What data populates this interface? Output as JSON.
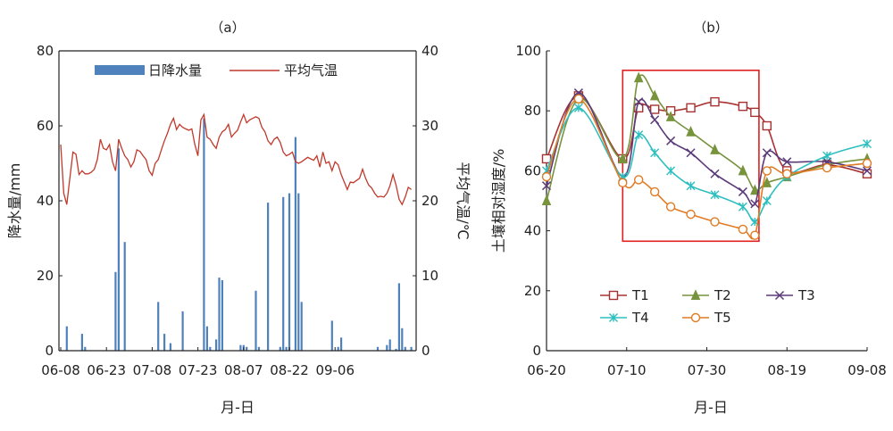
{
  "chart_data": [
    {
      "panel": "(a)",
      "type": "bar+line",
      "title": "（a）",
      "xlabel": "月-日",
      "ylabel_left": "降水量/mm",
      "ylabel_right": "平均气温/℃",
      "x_ticks": [
        "06-08",
        "06-23",
        "07-08",
        "07-23",
        "08-07",
        "08-22",
        "09-06"
      ],
      "ylim_left": [
        0,
        80
      ],
      "yticks_left": [
        "0",
        "20",
        "40",
        "60",
        "80"
      ],
      "ylim_right": [
        0,
        40
      ],
      "yticks_right": [
        "0",
        "10",
        "20",
        "30",
        "40"
      ],
      "legend": {
        "placement": "top-center",
        "entries": [
          "日降水量",
          "平均气温"
        ]
      },
      "colors": {
        "precip": "#4f81bd",
        "temp": "#c0392b"
      },
      "series_precip": {
        "name": "日降水量",
        "day": [
          2,
          7,
          8,
          18,
          19,
          21,
          32,
          34,
          36,
          40,
          47,
          48,
          49,
          51,
          52,
          53,
          59,
          60,
          61,
          64,
          65,
          68,
          72,
          73,
          74,
          75,
          77,
          78,
          79,
          89,
          91,
          92,
          104,
          107,
          108,
          110,
          111,
          112,
          113,
          115
        ],
        "values": [
          6.5,
          4.5,
          1,
          21,
          54,
          29,
          13,
          4.5,
          2,
          10.5,
          62,
          6.5,
          1,
          3,
          19.5,
          18.8,
          1.5,
          1.5,
          1,
          16,
          1,
          39.5,
          1,
          41,
          1,
          42,
          57,
          42,
          13,
          8,
          1,
          3.5,
          1,
          1.5,
          3,
          0.5,
          18,
          6,
          1,
          1
        ]
      },
      "series_temp": {
        "name": "平均气温",
        "day": [
          0,
          1,
          2,
          3,
          4,
          5,
          6,
          7,
          8,
          9,
          10,
          11,
          12,
          13,
          14,
          15,
          16,
          17,
          18,
          19,
          20,
          21,
          22,
          23,
          24,
          25,
          26,
          27,
          28,
          29,
          30,
          31,
          32,
          33,
          34,
          35,
          36,
          37,
          38,
          39,
          40,
          41,
          42,
          43,
          44,
          45,
          46,
          47,
          48,
          49,
          50,
          51,
          52,
          53,
          54,
          55,
          56,
          57,
          58,
          59,
          60,
          61,
          62,
          63,
          64,
          65,
          66,
          67,
          68,
          69,
          70,
          71,
          72,
          73,
          74,
          75,
          76,
          77,
          78,
          79,
          80,
          81,
          82,
          83,
          84,
          85,
          86,
          87,
          88,
          89,
          90,
          91,
          92,
          93,
          94,
          95,
          96,
          97,
          98,
          99,
          100,
          101,
          102,
          103,
          104,
          105,
          106,
          107,
          108,
          109,
          110,
          111,
          112,
          113,
          114,
          115
        ],
        "values": [
          27.5,
          21,
          19.5,
          23,
          26.5,
          26.2,
          23.5,
          24,
          23.6,
          23.6,
          23.8,
          24.2,
          25.5,
          28.2,
          27,
          26.8,
          27.5,
          25.2,
          24,
          28.2,
          27,
          26,
          25.5,
          24.5,
          25.2,
          26.8,
          26.6,
          26,
          25.5,
          24,
          23.4,
          25,
          25.5,
          26.8,
          28,
          29,
          30.2,
          31,
          29.5,
          30.2,
          29.8,
          29.6,
          29.4,
          29.6,
          27.5,
          26,
          30.8,
          31.5,
          28.5,
          28.2,
          27.5,
          27,
          28.5,
          29.2,
          29.5,
          30.2,
          28.5,
          29,
          29.4,
          30.5,
          31.5,
          30.4,
          30.8,
          31,
          31.2,
          31,
          29.8,
          29.2,
          28,
          27.5,
          28.2,
          28.5,
          27.8,
          26.5,
          26,
          26.2,
          26.5,
          25.2,
          25,
          25.2,
          25.5,
          25.8,
          25.6,
          25.4,
          26,
          24.5,
          26.5,
          25,
          25.2,
          24,
          25.2,
          24.8,
          23.5,
          22.5,
          21.5,
          22.5,
          22.4,
          22.7,
          23,
          24.2,
          23,
          22.1,
          21.7,
          21,
          20.5,
          20.6,
          20.5,
          21,
          22,
          23.5,
          22.1,
          20.2,
          19.5,
          20.5,
          21.8,
          21.5
        ]
      }
    },
    {
      "panel": "(b)",
      "type": "line",
      "title": "（b）",
      "xlabel": "月-日",
      "ylabel": "土壤相对湿度/%",
      "x_ticks": [
        "06-20",
        "07-10",
        "07-30",
        "08-19",
        "09-08"
      ],
      "xlim_days": [
        0,
        80
      ],
      "ylim": [
        0,
        100
      ],
      "yticks": [
        "0",
        "20",
        "40",
        "60",
        "80",
        "100"
      ],
      "grid": false,
      "highlight_box": {
        "x": [
          19,
          53
        ],
        "y": [
          36.5,
          93.5
        ],
        "color": "#e02020"
      },
      "legend": {
        "placement": "bottom-center",
        "entries": [
          "T1",
          "T2",
          "T3",
          "T4",
          "T5"
        ]
      },
      "series": [
        {
          "name": "T1",
          "marker": "square",
          "color": "#a83232",
          "day": [
            0,
            8,
            19,
            23,
            27,
            31,
            36,
            42,
            49,
            52,
            55,
            60,
            70,
            80
          ],
          "values": [
            64,
            85,
            64,
            81,
            80.5,
            80,
            81,
            83,
            81.5,
            79.5,
            75,
            60,
            62,
            59
          ]
        },
        {
          "name": "T2",
          "marker": "triangle",
          "color": "#77933c",
          "day": [
            0,
            8,
            19,
            23,
            27,
            31,
            36,
            42,
            49,
            52,
            55,
            60,
            70,
            80
          ],
          "values": [
            50,
            84,
            64,
            91,
            85,
            78,
            73,
            67,
            60,
            53.5,
            56,
            58,
            62,
            64
          ]
        },
        {
          "name": "T3",
          "marker": "cross",
          "color": "#5b3a7a",
          "day": [
            0,
            8,
            19,
            23,
            27,
            31,
            36,
            42,
            49,
            52,
            55,
            60,
            70,
            80
          ],
          "values": [
            55,
            86,
            58,
            83,
            77,
            70,
            66,
            59,
            53,
            49,
            66,
            63,
            63,
            60
          ]
        },
        {
          "name": "T4",
          "marker": "star",
          "color": "#2dbfbf",
          "day": [
            0,
            8,
            19,
            23,
            27,
            31,
            36,
            42,
            49,
            52,
            55,
            60,
            70,
            80
          ],
          "values": [
            60,
            81,
            58,
            72,
            66,
            60,
            55,
            52,
            48,
            43,
            50,
            58,
            65,
            69
          ]
        },
        {
          "name": "T5",
          "marker": "circle",
          "color": "#e07b24",
          "day": [
            0,
            8,
            19,
            23,
            27,
            31,
            36,
            42,
            49,
            52,
            55,
            60,
            70,
            80
          ],
          "values": [
            58,
            84,
            56,
            57,
            53,
            48,
            45.5,
            43,
            40.5,
            38.5,
            60,
            59,
            61,
            62.5
          ]
        }
      ]
    }
  ]
}
